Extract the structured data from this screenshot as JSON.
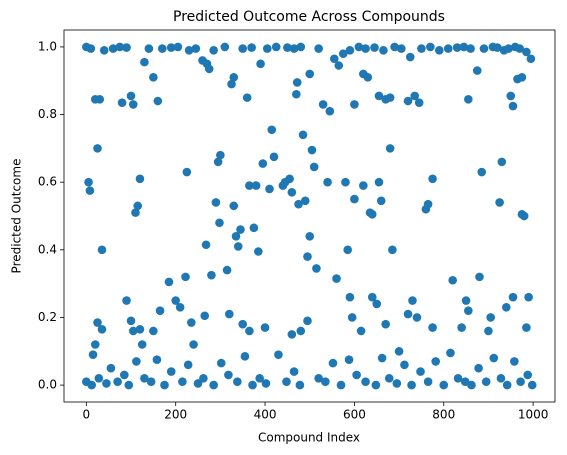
{
  "chart_data": {
    "type": "scatter",
    "title": "Predicted Outcome Across Compounds",
    "xlabel": "Compound Index",
    "ylabel": "Predicted Outcome",
    "color": "#1f77b4",
    "xlim": [
      -50,
      1049
    ],
    "ylim": [
      -0.05,
      1.05
    ],
    "xticks": [
      0,
      200,
      400,
      600,
      800,
      1000
    ],
    "yticks": [
      {
        "value": 0,
        "label": "0.0"
      },
      0.2,
      0.4,
      0.6,
      0.8,
      {
        "value": 1,
        "label": "1.0"
      }
    ],
    "x": [
      5,
      8,
      25,
      35,
      110,
      115,
      120,
      185,
      200,
      222,
      225,
      268,
      280,
      290,
      295,
      300,
      298,
      315,
      330,
      335,
      340,
      345,
      365,
      375,
      380,
      385,
      395,
      410,
      415,
      420,
      440,
      445,
      455,
      460,
      475,
      485,
      490,
      495,
      500,
      505,
      510,
      515,
      540,
      560,
      580,
      585,
      600,
      620,
      635,
      640,
      655,
      660,
      685,
      680,
      760,
      765,
      775,
      820,
      880,
      885,
      925,
      930,
      975,
      980,
      20,
      30,
      100,
      105,
      80,
      160,
      150,
      330,
      360,
      470,
      472,
      530,
      545,
      600,
      620,
      630,
      655,
      670,
      680,
      720,
      735,
      745,
      855,
      950,
      955,
      965,
      975,
      20,
      15,
      25,
      35,
      90,
      100,
      105,
      120,
      125,
      150,
      165,
      210,
      235,
      240,
      265,
      320,
      350,
      365,
      400,
      460,
      480,
      495,
      590,
      595,
      615,
      640,
      650,
      670,
      700,
      720,
      730,
      740,
      775,
      840,
      850,
      855,
      900,
      905,
      940,
      955,
      985,
      990,
      0,
      10,
      40,
      60,
      75,
      90,
      130,
      140,
      170,
      190,
      205,
      230,
      245,
      260,
      270,
      275,
      285,
      310,
      325,
      350,
      370,
      390,
      405,
      425,
      450,
      465,
      480,
      500,
      520,
      555,
      565,
      575,
      590,
      610,
      625,
      645,
      665,
      690,
      705,
      725,
      750,
      770,
      790,
      810,
      830,
      845,
      860,
      875,
      890,
      910,
      920,
      935,
      945,
      960,
      970,
      985,
      995,
      0,
      12,
      28,
      45,
      55,
      70,
      85,
      95,
      112,
      130,
      145,
      158,
      175,
      190,
      215,
      228,
      250,
      262,
      285,
      302,
      318,
      338,
      355,
      372,
      388,
      402,
      430,
      448,
      465,
      478,
      520,
      535,
      552,
      570,
      588,
      605,
      625,
      648,
      662,
      678,
      695,
      712,
      728,
      748,
      765,
      782,
      800,
      815,
      832,
      848,
      862,
      878,
      895,
      912,
      928,
      942,
      958,
      972,
      988,
      998
    ],
    "values": [
      0.6,
      0.575,
      0.7,
      0.4,
      0.51,
      0.53,
      0.61,
      0.305,
      0.25,
      0.32,
      0.63,
      0.415,
      0.325,
      0.54,
      0.66,
      0.68,
      0.48,
      0.34,
      0.53,
      0.44,
      0.41,
      0.46,
      0.59,
      0.465,
      0.59,
      0.395,
      0.655,
      0.58,
      0.755,
      0.675,
      0.59,
      0.6,
      0.61,
      0.57,
      0.535,
      0.74,
      0.545,
      0.38,
      0.44,
      0.695,
      0.645,
      0.345,
      0.6,
      0.315,
      0.6,
      0.4,
      0.55,
      0.59,
      0.51,
      0.505,
      0.6,
      0.545,
      0.4,
      0.7,
      0.52,
      0.535,
      0.61,
      0.31,
      0.32,
      0.63,
      0.54,
      0.66,
      0.505,
      0.5,
      0.845,
      0.845,
      0.855,
      0.83,
      0.835,
      0.84,
      0.91,
      0.91,
      0.85,
      0.86,
      0.895,
      0.83,
      0.81,
      0.83,
      0.92,
      0.91,
      0.855,
      0.845,
      0.85,
      0.84,
      0.855,
      0.835,
      0.845,
      0.855,
      0.825,
      0.905,
      0.91,
      0.12,
      0.09,
      0.185,
      0.165,
      0.25,
      0.19,
      0.16,
      0.165,
      0.12,
      0.16,
      0.22,
      0.23,
      0.185,
      0.12,
      0.205,
      0.21,
      0.18,
      0.16,
      0.17,
      0.15,
      0.16,
      0.19,
      0.26,
      0.2,
      0.16,
      0.26,
      0.24,
      0.18,
      0.1,
      0.21,
      0.25,
      0.2,
      0.17,
      0.17,
      0.25,
      0.22,
      0.16,
      0.2,
      0.23,
      0.26,
      0.17,
      0.26,
      1.0,
      0.995,
      0.99,
      0.995,
      1.0,
      0.998,
      0.955,
      0.995,
      0.995,
      0.998,
      1.0,
      0.99,
      0.995,
      0.96,
      0.95,
      0.935,
      0.99,
      1.0,
      0.89,
      0.995,
      0.998,
      0.95,
      0.995,
      1.0,
      0.998,
      0.995,
      1.0,
      0.92,
      0.995,
      0.965,
      0.945,
      0.98,
      0.99,
      1.0,
      0.995,
      0.998,
      0.99,
      1.0,
      0.995,
      0.97,
      0.995,
      1.0,
      0.99,
      0.995,
      0.998,
      1.0,
      0.995,
      0.93,
      0.995,
      1.0,
      0.998,
      0.99,
      0.995,
      1.0,
      0.995,
      0.985,
      0.965,
      0.01,
      0.0,
      0.02,
      0.005,
      0.05,
      0.01,
      0.03,
      0.0,
      0.07,
      0.02,
      0.01,
      0.075,
      0.0,
      0.04,
      0.01,
      0.06,
      0.005,
      0.02,
      0.0,
      0.065,
      0.03,
      0.01,
      0.085,
      0.0,
      0.02,
      0.005,
      0.09,
      0.01,
      0.04,
      0.0,
      0.02,
      0.01,
      0.065,
      0.0,
      0.075,
      0.03,
      0.01,
      0.0,
      0.08,
      0.02,
      0.005,
      0.06,
      0.0,
      0.04,
      0.01,
      0.07,
      0.0,
      0.095,
      0.02,
      0.01,
      0.0,
      0.05,
      0.01,
      0.08,
      0.02,
      0.0,
      0.07,
      0.01,
      0.03,
      0.0
    ]
  }
}
